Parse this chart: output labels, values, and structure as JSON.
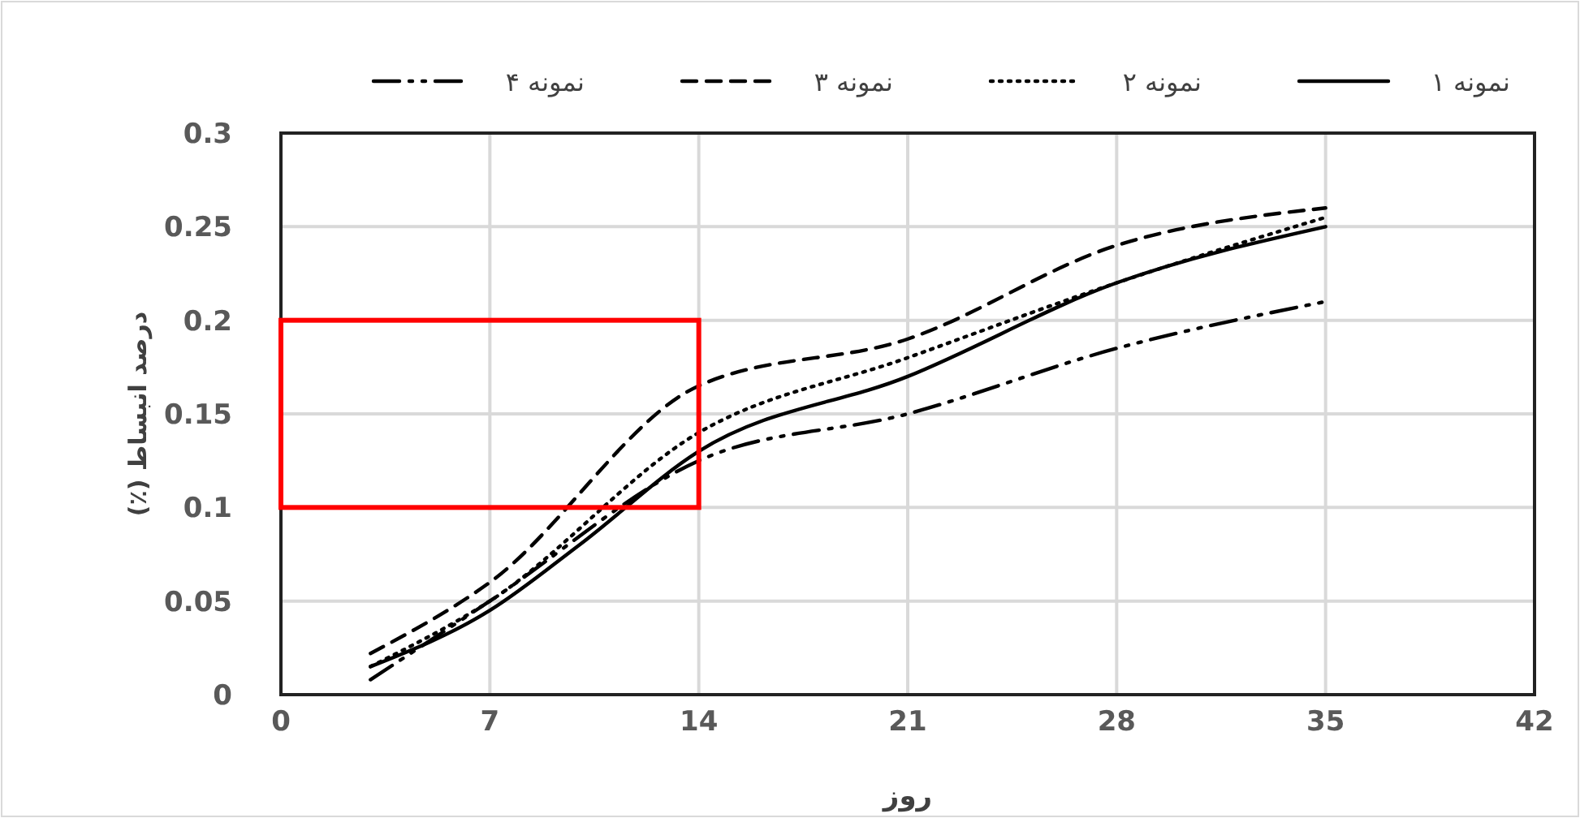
{
  "chart_data": {
    "type": "line",
    "xlabel": "روز",
    "ylabel": "درصد انبساط (٪)",
    "xlim": [
      0,
      42
    ],
    "xticks": [
      0,
      7,
      14,
      21,
      28,
      35,
      42
    ],
    "ylim": [
      0,
      0.3
    ],
    "yticks": [
      0,
      0.05,
      0.1,
      0.15,
      0.2,
      0.25,
      0.3
    ],
    "grid": true,
    "legend": "top",
    "marker": "none",
    "series": [
      {
        "name": "نمونه ۱",
        "color": "#000000",
        "line_style": "solid",
        "x": [
          3,
          7,
          10,
          14,
          21,
          28,
          35
        ],
        "values": [
          0.015,
          0.045,
          0.08,
          0.13,
          0.17,
          0.22,
          0.25
        ]
      },
      {
        "name": "نمونه ۲",
        "color": "#000000",
        "line_style": "dotted",
        "x": [
          3,
          7,
          14,
          21,
          28,
          35
        ],
        "values": [
          0.015,
          0.05,
          0.14,
          0.18,
          0.22,
          0.255
        ]
      },
      {
        "name": "نمونه ۳",
        "color": "#000000",
        "line_style": "dashed",
        "x": [
          3,
          7,
          14,
          21,
          28,
          35
        ],
        "values": [
          0.022,
          0.06,
          0.165,
          0.19,
          0.24,
          0.26
        ]
      },
      {
        "name": "نمونه ۴",
        "color": "#000000",
        "line_style": "dashdot",
        "x": [
          3,
          7,
          14,
          21,
          28,
          35
        ],
        "values": [
          0.008,
          0.05,
          0.125,
          0.15,
          0.185,
          0.21
        ]
      }
    ]
  }
}
